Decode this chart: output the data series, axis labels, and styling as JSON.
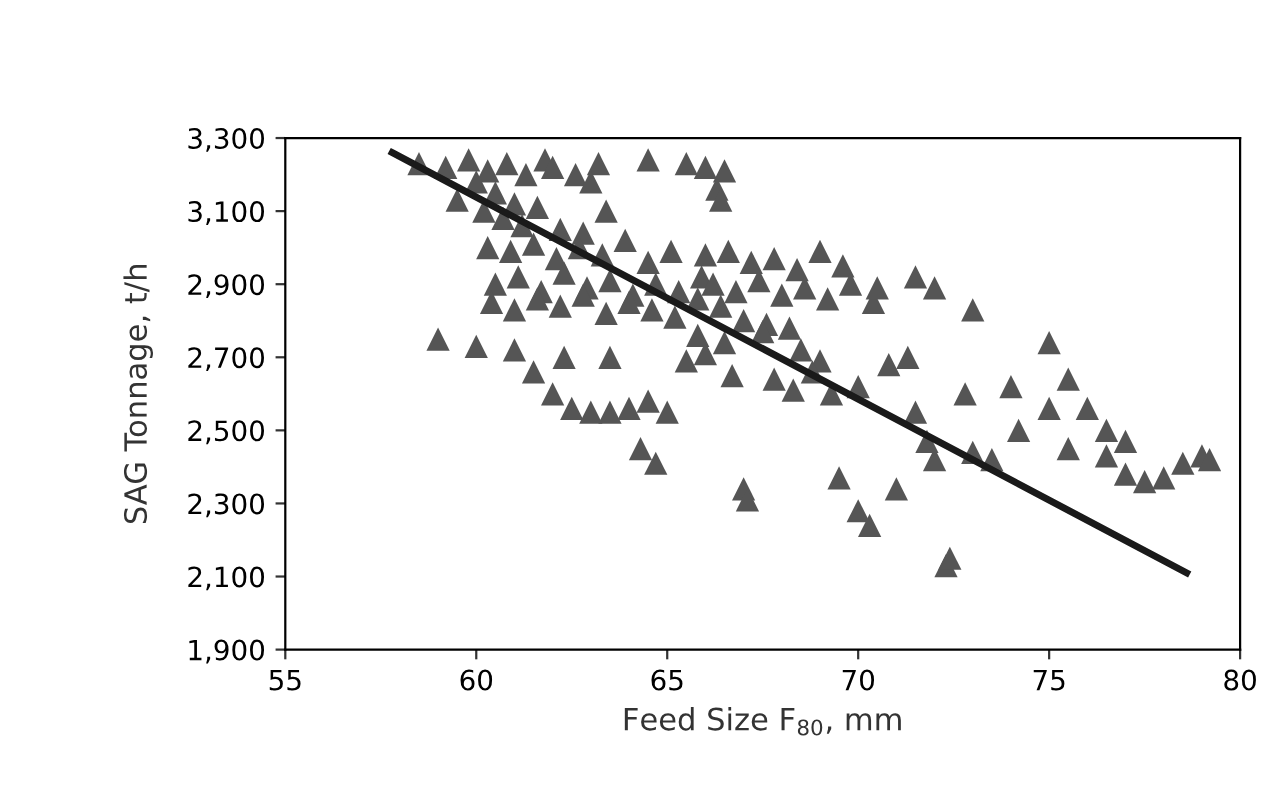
{
  "chart_data": {
    "type": "scatter",
    "xlabel": "Feed Size F$_{80}$, mm",
    "ylabel": "SAG Tonnage, t/h",
    "xlim": [
      55,
      80
    ],
    "ylim": [
      1900,
      3300
    ],
    "xticks": [
      55,
      60,
      65,
      70,
      75,
      80
    ],
    "yticks": [
      {
        "value": 1900,
        "label": "1,900"
      },
      {
        "value": 2100,
        "label": "2,100"
      },
      {
        "value": 2300,
        "label": "2,300"
      },
      {
        "value": 2500,
        "label": "2,500"
      },
      {
        "value": 2700,
        "label": "2,700"
      },
      {
        "value": 2900,
        "label": "2,900"
      },
      {
        "value": 3100,
        "label": "3,100"
      },
      {
        "value": 3300,
        "label": "3,300"
      }
    ],
    "grid": false,
    "series": [
      {
        "marker": "triangle",
        "color": "#555555",
        "x": [
          58.5,
          59.2,
          59.8,
          60.3,
          60.8,
          61.3,
          61.8,
          60.0,
          60.5,
          61.0,
          62.0,
          62.6,
          63.2,
          64.5,
          63.0,
          65.5,
          66.0,
          66.5,
          66.3,
          66.4,
          59.5,
          60.2,
          60.7,
          61.2,
          61.6,
          62.2,
          62.8,
          63.4,
          60.3,
          60.9,
          61.5,
          62.1,
          62.7,
          63.3,
          63.9,
          64.5,
          65.1,
          60.5,
          61.1,
          61.7,
          62.3,
          62.9,
          63.5,
          64.1,
          64.7,
          65.3,
          65.9,
          60.4,
          61.0,
          61.6,
          62.2,
          62.8,
          63.4,
          64.0,
          64.6,
          65.2,
          65.8,
          66.4,
          67.0,
          67.6,
          68.2,
          66.0,
          66.6,
          67.2,
          67.8,
          68.4,
          69.0,
          69.6,
          66.2,
          66.8,
          67.4,
          68.0,
          68.6,
          69.2,
          69.8,
          70.4,
          59.0,
          60.0,
          61.0,
          62.0,
          62.5,
          63.0,
          63.5,
          64.0,
          64.5,
          65.0,
          64.3,
          64.7,
          67.0,
          67.1,
          61.5,
          62.3,
          63.5,
          65.5,
          66.0,
          66.7,
          65.8,
          66.5,
          67.5,
          68.5,
          69.0,
          67.8,
          68.3,
          68.8,
          69.3,
          70.0,
          70.8,
          71.3,
          70.5,
          71.5,
          72.0,
          73.0,
          75.0,
          75.5,
          74.0,
          75.0,
          76.0,
          76.5,
          77.0,
          76.5,
          77.0,
          77.5,
          78.0,
          78.5,
          79.0,
          79.2,
          75.5,
          73.5,
          73.0,
          71.0,
          70.0,
          70.3,
          72.3,
          72.4,
          72.0,
          71.8,
          69.5,
          71.5,
          72.8,
          74.2
        ],
        "values": [
          3230,
          3220,
          3240,
          3210,
          3230,
          3200,
          3240,
          3180,
          3150,
          3120,
          3220,
          3200,
          3230,
          3240,
          3180,
          3230,
          3220,
          3210,
          3160,
          3130,
          3130,
          3100,
          3080,
          3060,
          3110,
          3050,
          3040,
          3100,
          3000,
          2990,
          3010,
          2970,
          3000,
          2980,
          3020,
          2960,
          2990,
          2900,
          2920,
          2880,
          2930,
          2890,
          2910,
          2870,
          2900,
          2880,
          2920,
          2850,
          2830,
          2860,
          2840,
          2870,
          2820,
          2850,
          2830,
          2810,
          2860,
          2840,
          2800,
          2790,
          2780,
          2980,
          2990,
          2960,
          2970,
          2940,
          2990,
          2950,
          2900,
          2880,
          2910,
          2870,
          2890,
          2860,
          2900,
          2850,
          2750,
          2730,
          2720,
          2600,
          2560,
          2550,
          2550,
          2560,
          2580,
          2550,
          2450,
          2410,
          2340,
          2310,
          2660,
          2700,
          2700,
          2690,
          2710,
          2650,
          2760,
          2740,
          2770,
          2720,
          2690,
          2640,
          2610,
          2660,
          2600,
          2620,
          2680,
          2700,
          2890,
          2920,
          2890,
          2830,
          2740,
          2640,
          2620,
          2560,
          2560,
          2500,
          2470,
          2430,
          2380,
          2360,
          2370,
          2410,
          2430,
          2420,
          2450,
          2420,
          2440,
          2340,
          2280,
          2240,
          2130,
          2150,
          2420,
          2470,
          2370,
          2550,
          2600,
          2500
        ]
      },
      {
        "type": "line",
        "marker": "none",
        "color": "#1a1a1a",
        "x": [
          57.8,
          78.6
        ],
        "values": [
          3260,
          2110
        ]
      }
    ]
  }
}
